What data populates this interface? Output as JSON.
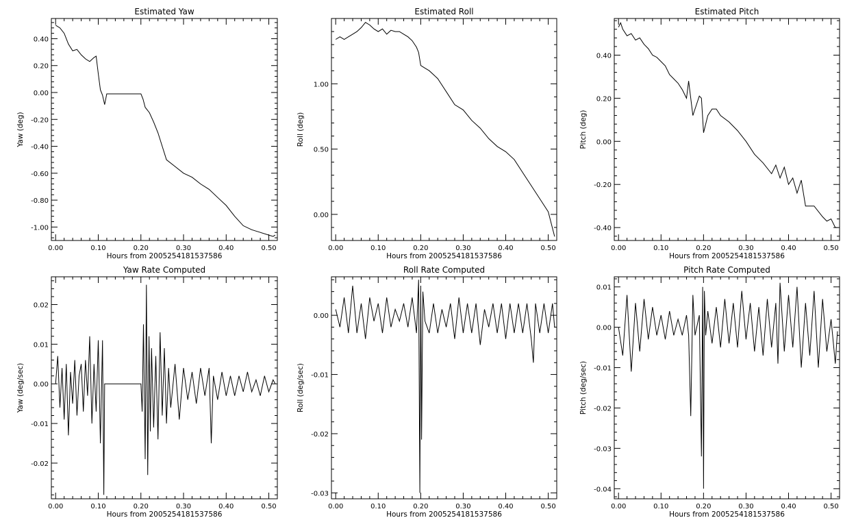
{
  "colors": {
    "background": "#ffffff",
    "ink": "#000000"
  },
  "chart_data": [
    {
      "type": "line",
      "title": "Estimated Yaw",
      "xlabel": "Hours from 2005254181537586",
      "ylabel": "Yaw (deg)",
      "xlim": [
        -0.01,
        0.52
      ],
      "ylim": [
        -1.1,
        0.55
      ],
      "x_ticks": [
        "0.00",
        "0.10",
        "0.20",
        "0.30",
        "0.40",
        "0.50"
      ],
      "y_ticks": [
        "0.40",
        "0.20",
        "0.00",
        "-0.20",
        "-0.40",
        "-0.60",
        "-0.80",
        "-1.00"
      ],
      "series": [
        {
          "x": [
            0.0,
            0.01,
            0.02,
            0.03,
            0.04,
            0.05,
            0.06,
            0.07,
            0.08,
            0.09,
            0.095,
            0.1,
            0.105,
            0.11,
            0.115,
            0.12,
            0.14,
            0.16,
            0.18,
            0.2,
            0.205,
            0.21,
            0.22,
            0.23,
            0.24,
            0.25,
            0.26,
            0.28,
            0.3,
            0.32,
            0.34,
            0.36,
            0.38,
            0.4,
            0.42,
            0.44,
            0.46,
            0.48,
            0.5,
            0.51,
            0.515
          ],
          "y": [
            0.5,
            0.48,
            0.44,
            0.36,
            0.31,
            0.32,
            0.28,
            0.25,
            0.23,
            0.26,
            0.27,
            0.14,
            0.02,
            -0.02,
            -0.09,
            -0.01,
            -0.01,
            -0.01,
            -0.01,
            -0.01,
            -0.05,
            -0.11,
            -0.15,
            -0.22,
            -0.3,
            -0.4,
            -0.5,
            -0.55,
            -0.6,
            -0.63,
            -0.68,
            -0.72,
            -0.78,
            -0.84,
            -0.92,
            -0.99,
            -1.02,
            -1.04,
            -1.06,
            -1.07,
            -1.06
          ]
        }
      ]
    },
    {
      "type": "line",
      "title": "Estimated Roll",
      "xlabel": "Hours from 2005254181537586",
      "ylabel": "Roll (deg)",
      "xlim": [
        -0.01,
        0.52
      ],
      "ylim": [
        -0.2,
        1.5
      ],
      "x_ticks": [
        "0.00",
        "0.10",
        "0.20",
        "0.30",
        "0.40",
        "0.50"
      ],
      "y_ticks": [
        "1.00",
        "0.50",
        "0.00"
      ],
      "series": [
        {
          "x": [
            0.0,
            0.01,
            0.02,
            0.03,
            0.04,
            0.05,
            0.06,
            0.07,
            0.08,
            0.09,
            0.1,
            0.11,
            0.12,
            0.13,
            0.14,
            0.15,
            0.16,
            0.17,
            0.18,
            0.19,
            0.195,
            0.2,
            0.21,
            0.22,
            0.24,
            0.26,
            0.28,
            0.3,
            0.32,
            0.34,
            0.36,
            0.38,
            0.4,
            0.42,
            0.44,
            0.46,
            0.48,
            0.5,
            0.515
          ],
          "y": [
            1.34,
            1.36,
            1.34,
            1.36,
            1.38,
            1.4,
            1.43,
            1.47,
            1.45,
            1.42,
            1.4,
            1.42,
            1.38,
            1.41,
            1.4,
            1.4,
            1.38,
            1.36,
            1.33,
            1.28,
            1.24,
            1.14,
            1.12,
            1.1,
            1.04,
            0.94,
            0.84,
            0.8,
            0.72,
            0.66,
            0.58,
            0.52,
            0.48,
            0.42,
            0.32,
            0.22,
            0.12,
            0.02,
            -0.17
          ]
        }
      ]
    },
    {
      "type": "line",
      "title": "Estimated Pitch",
      "xlabel": "Hours from 2005254181537586",
      "ylabel": "Pitch (deg)",
      "xlim": [
        -0.01,
        0.52
      ],
      "ylim": [
        -0.46,
        0.57
      ],
      "x_ticks": [
        "0.00",
        "0.10",
        "0.20",
        "0.30",
        "0.40",
        "0.50"
      ],
      "y_ticks": [
        "0.40",
        "0.20",
        "0.00",
        "-0.20",
        "-0.40"
      ],
      "series": [
        {
          "x": [
            0.0,
            0.005,
            0.01,
            0.02,
            0.03,
            0.04,
            0.05,
            0.06,
            0.07,
            0.08,
            0.09,
            0.1,
            0.11,
            0.12,
            0.13,
            0.14,
            0.15,
            0.16,
            0.165,
            0.17,
            0.175,
            0.18,
            0.19,
            0.195,
            0.2,
            0.21,
            0.22,
            0.23,
            0.24,
            0.26,
            0.28,
            0.3,
            0.32,
            0.34,
            0.36,
            0.37,
            0.38,
            0.39,
            0.4,
            0.41,
            0.42,
            0.43,
            0.44,
            0.46,
            0.48,
            0.49,
            0.5,
            0.51,
            0.515
          ],
          "y": [
            0.53,
            0.55,
            0.52,
            0.49,
            0.5,
            0.47,
            0.48,
            0.45,
            0.43,
            0.4,
            0.39,
            0.37,
            0.35,
            0.31,
            0.29,
            0.27,
            0.24,
            0.2,
            0.28,
            0.2,
            0.12,
            0.15,
            0.21,
            0.2,
            0.04,
            0.12,
            0.15,
            0.15,
            0.12,
            0.09,
            0.05,
            0.0,
            -0.06,
            -0.1,
            -0.15,
            -0.11,
            -0.17,
            -0.12,
            -0.2,
            -0.17,
            -0.24,
            -0.18,
            -0.3,
            -0.3,
            -0.35,
            -0.37,
            -0.36,
            -0.4,
            -0.4
          ]
        }
      ]
    },
    {
      "type": "line",
      "title": "Yaw Rate Computed",
      "xlabel": "Hours from 2005254181537586",
      "ylabel": "Yaw (deg/sec)",
      "xlim": [
        -0.01,
        0.52
      ],
      "ylim": [
        -0.029,
        0.027
      ],
      "x_ticks": [
        "0.00",
        "0.10",
        "0.20",
        "0.30",
        "0.40",
        "0.50"
      ],
      "y_ticks": [
        "0.02",
        "0.01",
        "0.00",
        "-0.01",
        "-0.02"
      ],
      "series": [
        {
          "x": [
            0.0,
            0.005,
            0.01,
            0.015,
            0.02,
            0.025,
            0.03,
            0.035,
            0.04,
            0.045,
            0.05,
            0.055,
            0.06,
            0.065,
            0.07,
            0.075,
            0.08,
            0.085,
            0.09,
            0.095,
            0.1,
            0.105,
            0.11,
            0.113,
            0.115,
            0.12,
            0.15,
            0.18,
            0.2,
            0.203,
            0.206,
            0.21,
            0.213,
            0.216,
            0.219,
            0.222,
            0.225,
            0.23,
            0.235,
            0.24,
            0.245,
            0.25,
            0.255,
            0.26,
            0.265,
            0.27,
            0.28,
            0.29,
            0.3,
            0.31,
            0.32,
            0.33,
            0.34,
            0.35,
            0.36,
            0.365,
            0.37,
            0.38,
            0.39,
            0.4,
            0.41,
            0.42,
            0.43,
            0.44,
            0.45,
            0.46,
            0.47,
            0.48,
            0.49,
            0.5,
            0.51,
            0.515
          ],
          "y": [
            0.0,
            0.007,
            -0.006,
            0.004,
            -0.009,
            0.005,
            -0.013,
            0.003,
            -0.005,
            0.006,
            -0.008,
            0.002,
            0.005,
            -0.007,
            0.006,
            -0.003,
            0.012,
            -0.01,
            0.005,
            -0.007,
            0.011,
            -0.015,
            0.011,
            -0.028,
            0.0,
            0.0,
            0.0,
            0.0,
            0.0,
            -0.007,
            0.015,
            -0.019,
            0.025,
            -0.023,
            0.012,
            -0.012,
            0.009,
            -0.011,
            0.007,
            -0.014,
            0.013,
            -0.008,
            0.009,
            -0.01,
            0.004,
            -0.006,
            0.005,
            -0.009,
            0.004,
            -0.004,
            0.003,
            -0.005,
            0.004,
            -0.003,
            0.004,
            -0.015,
            0.002,
            -0.004,
            0.003,
            -0.003,
            0.002,
            -0.003,
            0.002,
            -0.002,
            0.003,
            -0.002,
            0.001,
            -0.003,
            0.002,
            -0.002,
            0.001,
            0.0
          ]
        }
      ]
    },
    {
      "type": "line",
      "title": "Roll Rate Computed",
      "xlabel": "Hours from 2005254181537586",
      "ylabel": "Roll (deg/sec)",
      "xlim": [
        -0.01,
        0.52
      ],
      "ylim": [
        -0.031,
        0.0065
      ],
      "x_ticks": [
        "0.00",
        "0.10",
        "0.20",
        "0.30",
        "0.40",
        "0.50"
      ],
      "y_ticks": [
        "0.00",
        "-0.01",
        "-0.02",
        "-0.03"
      ],
      "series": [
        {
          "x": [
            0.0,
            0.01,
            0.02,
            0.03,
            0.04,
            0.05,
            0.06,
            0.07,
            0.08,
            0.09,
            0.1,
            0.11,
            0.12,
            0.13,
            0.14,
            0.15,
            0.16,
            0.17,
            0.18,
            0.19,
            0.195,
            0.198,
            0.2,
            0.202,
            0.205,
            0.21,
            0.22,
            0.23,
            0.24,
            0.25,
            0.26,
            0.27,
            0.28,
            0.29,
            0.3,
            0.31,
            0.32,
            0.33,
            0.34,
            0.35,
            0.36,
            0.37,
            0.38,
            0.39,
            0.4,
            0.41,
            0.42,
            0.43,
            0.44,
            0.45,
            0.46,
            0.465,
            0.47,
            0.48,
            0.49,
            0.5,
            0.51,
            0.515
          ],
          "y": [
            0.001,
            -0.002,
            0.003,
            -0.003,
            0.005,
            -0.003,
            0.002,
            -0.004,
            0.003,
            -0.001,
            0.002,
            -0.003,
            0.003,
            -0.002,
            0.001,
            -0.001,
            0.002,
            -0.002,
            0.003,
            -0.003,
            0.006,
            -0.03,
            0.005,
            -0.021,
            0.004,
            -0.001,
            -0.003,
            0.002,
            -0.003,
            0.001,
            -0.002,
            0.002,
            -0.004,
            0.003,
            -0.003,
            0.002,
            -0.003,
            0.002,
            -0.005,
            0.001,
            -0.002,
            0.002,
            -0.003,
            0.002,
            -0.004,
            0.002,
            -0.003,
            0.002,
            -0.003,
            0.002,
            -0.004,
            -0.008,
            0.002,
            -0.003,
            0.002,
            -0.003,
            0.002,
            -0.002
          ]
        }
      ]
    },
    {
      "type": "line",
      "title": "Pitch Rate Computed",
      "xlabel": "Hours from 2005254181537586",
      "ylabel": "Pitch (deg/sec)",
      "xlim": [
        -0.01,
        0.52
      ],
      "ylim": [
        -0.0425,
        0.0125
      ],
      "x_ticks": [
        "0.00",
        "0.10",
        "0.20",
        "0.30",
        "0.40",
        "0.50"
      ],
      "y_ticks": [
        "0.01",
        "0.00",
        "-0.01",
        "-0.02",
        "-0.03",
        "-0.04"
      ],
      "series": [
        {
          "x": [
            0.0,
            0.01,
            0.02,
            0.03,
            0.04,
            0.05,
            0.06,
            0.07,
            0.08,
            0.09,
            0.1,
            0.11,
            0.12,
            0.13,
            0.14,
            0.15,
            0.16,
            0.165,
            0.17,
            0.175,
            0.18,
            0.19,
            0.195,
            0.198,
            0.2,
            0.202,
            0.205,
            0.21,
            0.22,
            0.23,
            0.24,
            0.25,
            0.26,
            0.27,
            0.28,
            0.29,
            0.3,
            0.31,
            0.32,
            0.33,
            0.34,
            0.35,
            0.36,
            0.37,
            0.375,
            0.38,
            0.39,
            0.4,
            0.41,
            0.42,
            0.43,
            0.44,
            0.45,
            0.46,
            0.47,
            0.48,
            0.49,
            0.5,
            0.51,
            0.515
          ],
          "y": [
            0.0,
            -0.007,
            0.008,
            -0.011,
            0.006,
            -0.006,
            0.007,
            -0.003,
            0.005,
            -0.002,
            0.003,
            -0.003,
            0.004,
            -0.002,
            0.002,
            -0.002,
            0.003,
            -0.002,
            -0.022,
            0.008,
            -0.002,
            0.003,
            -0.032,
            0.01,
            -0.04,
            0.009,
            -0.002,
            0.004,
            -0.004,
            0.005,
            -0.005,
            0.007,
            -0.004,
            0.006,
            -0.005,
            0.009,
            -0.003,
            0.006,
            -0.006,
            0.005,
            -0.007,
            0.007,
            -0.005,
            0.006,
            -0.009,
            0.011,
            -0.006,
            0.008,
            -0.005,
            0.01,
            -0.01,
            0.006,
            -0.007,
            0.009,
            -0.01,
            0.007,
            -0.006,
            0.002,
            -0.009,
            -0.001
          ]
        }
      ]
    }
  ]
}
